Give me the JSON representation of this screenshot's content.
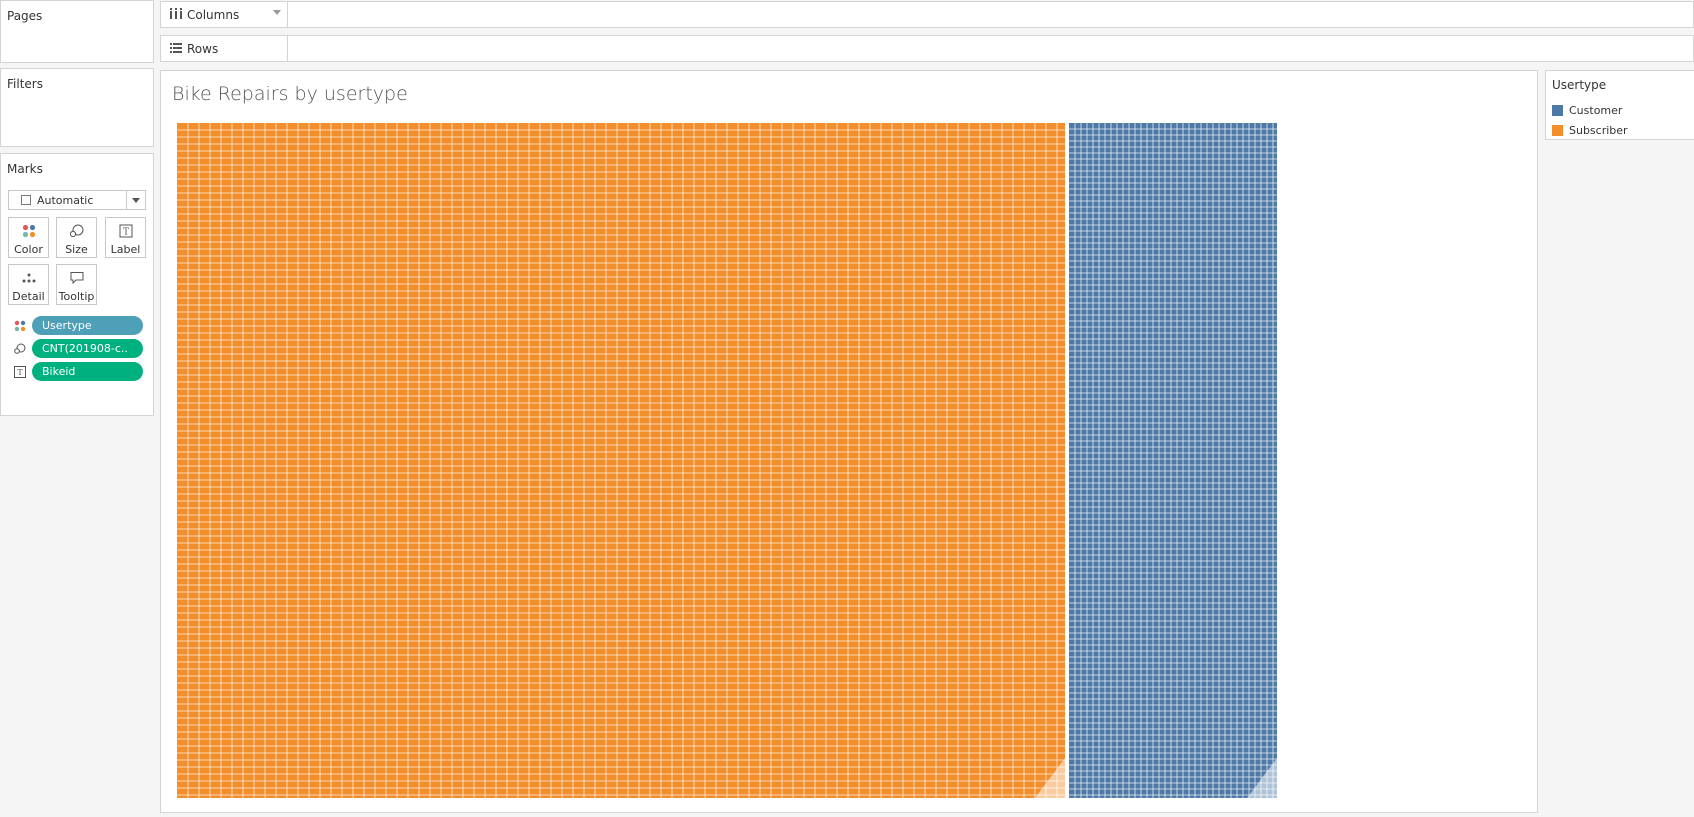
{
  "pages_card": {
    "title": "Pages"
  },
  "filters_card": {
    "title": "Filters"
  },
  "columns_shelf": {
    "label": "Columns",
    "icon": "columns-icon"
  },
  "rows_shelf": {
    "label": "Rows",
    "icon": "rows-icon"
  },
  "marks_card": {
    "title": "Marks",
    "mark_type": "Automatic",
    "buttons": [
      {
        "label": "Color",
        "icon": "color-icon"
      },
      {
        "label": "Size",
        "icon": "size-icon"
      },
      {
        "label": "Label",
        "icon": "label-icon"
      },
      {
        "label": "Detail",
        "icon": "detail-icon"
      },
      {
        "label": "Tooltip",
        "icon": "tooltip-icon"
      }
    ],
    "pills": [
      {
        "label": "Usertype",
        "encoding": "color",
        "color": "#4e9fb8"
      },
      {
        "label": "CNT(201908-c..",
        "encoding": "size",
        "color": "#00b180"
      },
      {
        "label": "Bikeid",
        "encoding": "label",
        "color": "#00b180"
      }
    ]
  },
  "viz": {
    "title": "Bike Repairs by usertype"
  },
  "legend": {
    "title": "Usertype",
    "items": [
      {
        "label": "Customer",
        "color": "#4e79a7"
      },
      {
        "label": "Subscriber",
        "color": "#f28e2b"
      }
    ]
  },
  "chart_data": {
    "type": "treemap",
    "title": "Bike Repairs by usertype",
    "color_field": "Usertype",
    "size_field": "CNT(201908-c..",
    "label_field": "Bikeid",
    "groups": [
      {
        "name": "Subscriber",
        "color": "#f28e2b",
        "share": 0.81
      },
      {
        "name": "Customer",
        "color": "#4e79a7",
        "share": 0.19
      }
    ]
  }
}
